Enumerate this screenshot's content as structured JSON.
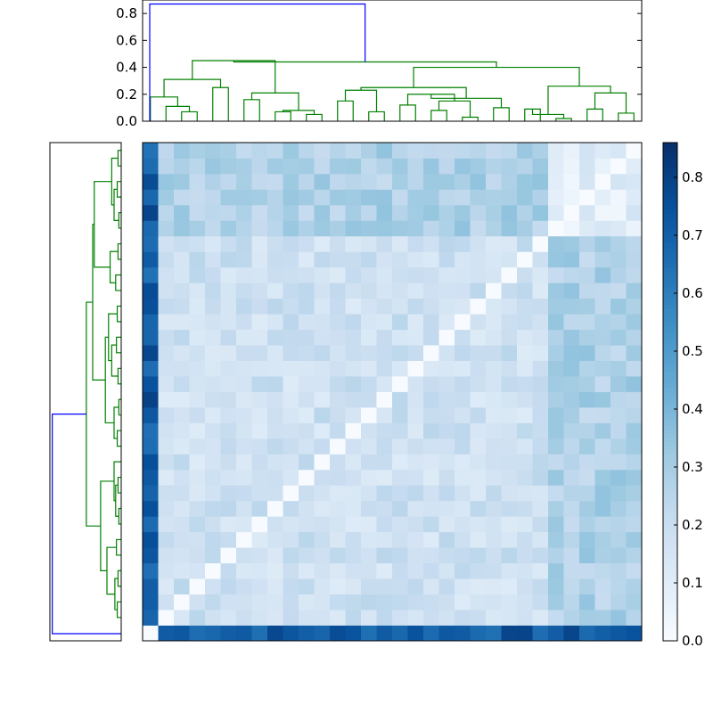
{
  "chart_data": [
    {
      "type": "dendrogram",
      "panel": "top",
      "ylim": [
        0,
        0.9
      ],
      "yticks": [
        "0.0",
        "0.2",
        "0.4",
        "0.6",
        "0.8"
      ],
      "ytick_values": [
        0,
        0.2,
        0.4,
        0.6,
        0.8
      ],
      "leaf_count": 32,
      "link_colors": {
        "root": "#0000ff",
        "cluster": "#008000"
      },
      "root_height": 0.87,
      "major_merge_heights": [
        0.45,
        0.41,
        0.31,
        0.25,
        0.18,
        0.17,
        0.15
      ]
    },
    {
      "type": "dendrogram",
      "panel": "left",
      "orientation": "left",
      "leaf_count": 32,
      "link_colors": {
        "root": "#0000ff",
        "cluster": "#008000"
      },
      "root_height": 0.87
    },
    {
      "type": "heatmap",
      "rows": 32,
      "cols": 32,
      "colormap": "Blues",
      "vmin": 0.0,
      "vmax": 0.86,
      "colorbar_ticks": [
        "0.0",
        "0.1",
        "0.2",
        "0.3",
        "0.4",
        "0.5",
        "0.6",
        "0.7",
        "0.8"
      ],
      "colorbar_tick_values": [
        0,
        0.1,
        0.2,
        0.3,
        0.4,
        0.5,
        0.6,
        0.7,
        0.8
      ],
      "cluster_boundary": 6,
      "block_means": {
        "within_small_cluster": 0.1,
        "within_large_cluster": 0.18,
        "between_clusters": 0.28,
        "outlier_row_col": 0.72
      }
    }
  ]
}
